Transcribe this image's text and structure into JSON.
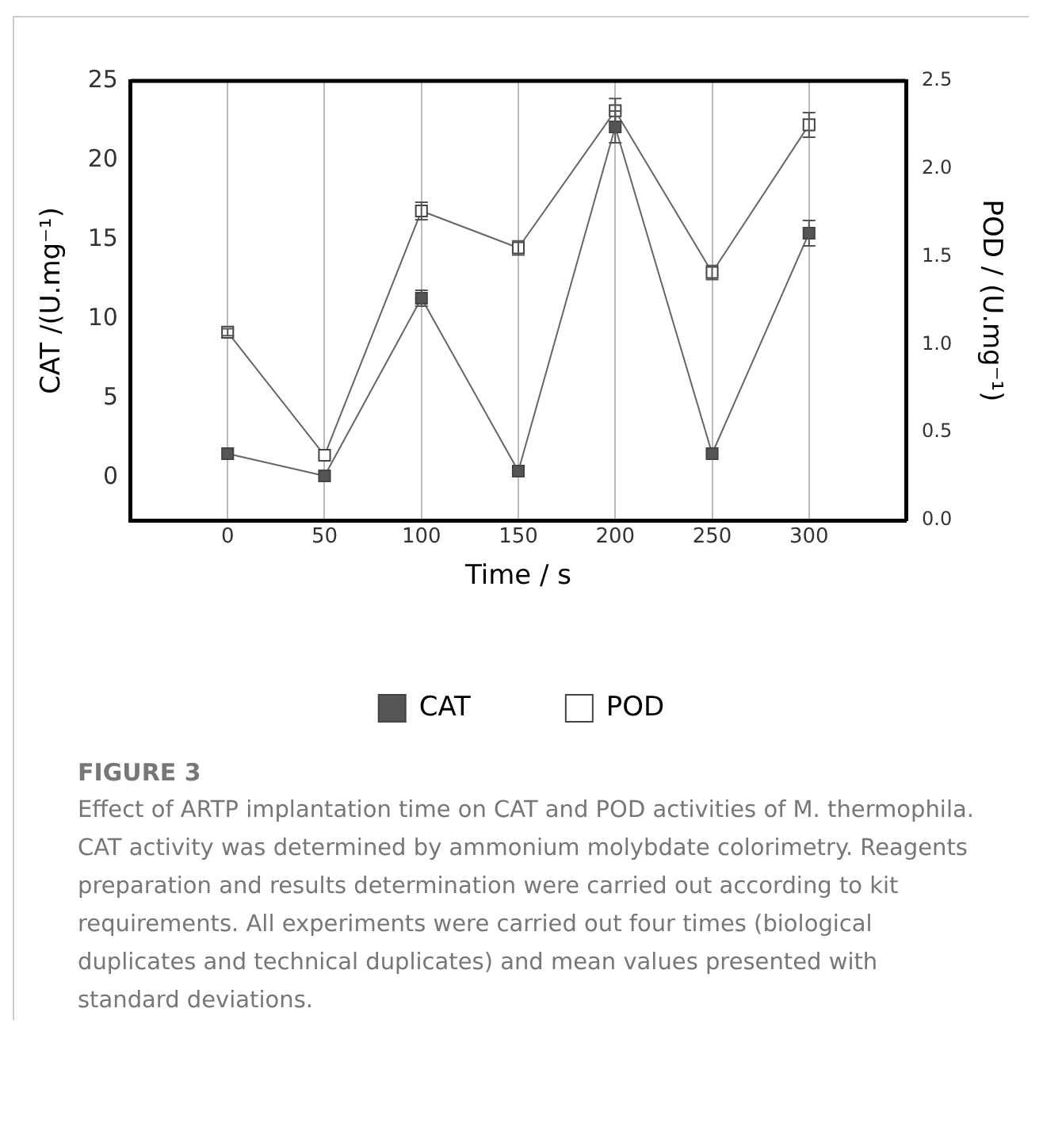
{
  "chart_data": {
    "type": "line",
    "x": [
      0,
      50,
      100,
      150,
      200,
      250,
      300
    ],
    "xlim": [
      -50,
      350
    ],
    "xticks": [
      0,
      50,
      100,
      150,
      200,
      250,
      300
    ],
    "xlabel": "Time / s",
    "ylabel": "CAT /(U.mg⁻¹)",
    "y2label": "POD / (U.mg⁻¹)",
    "ylim": [
      -2.7,
      25
    ],
    "yticks": [
      0,
      5,
      10,
      15,
      20,
      25
    ],
    "y2lim": [
      0,
      2.5
    ],
    "y2ticks": [
      {
        "value": 0,
        "label": "0.0"
      },
      {
        "value": 0.5,
        "label": "0.5"
      },
      {
        "value": 1,
        "label": "1.0"
      },
      {
        "value": 1.5,
        "label": "1.5"
      },
      {
        "value": 2,
        "label": "2.0"
      },
      {
        "value": 2.5,
        "label": "2.5"
      }
    ],
    "series": [
      {
        "name": "CAT",
        "color": "#555555",
        "values": [
          1.5,
          0.1,
          11.3,
          0.4,
          22.1,
          1.5,
          15.4
        ],
        "errors": [
          null,
          null,
          0.5,
          null,
          1.0,
          null,
          0.8
        ]
      },
      {
        "name": "POD",
        "color": "#ffffff",
        "axis": "y2",
        "values": [
          1.07,
          0.37,
          1.76,
          1.55,
          2.33,
          1.41,
          2.25
        ],
        "errors": [
          0.02,
          null,
          0.05,
          0.04,
          0.07,
          0.04,
          0.07
        ]
      }
    ],
    "grid": "x",
    "legend": "bottom",
    "marker": "square",
    "annotations": [
      "FIGURE 3",
      "Effect of ARTP implantation time on CAT and POD activities of M. thermophila. CAT activity was determined by ammonium molybdate colorimetry. Reagents preparation and results determination were carried out according to kit requirements. All experiments were carried out four times (biological duplicates and technical duplicates) and mean values presented with standard deviations."
    ]
  }
}
